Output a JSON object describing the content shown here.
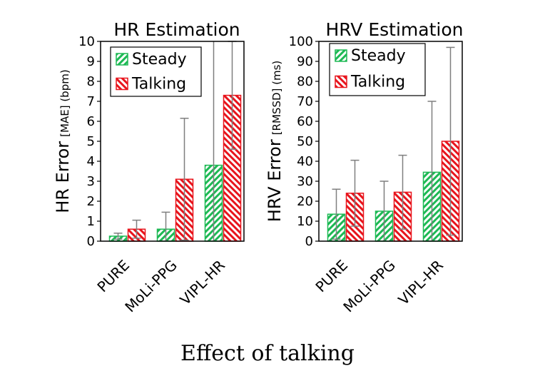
{
  "caption": "Effect of talking",
  "chart_data": [
    {
      "type": "bar",
      "title": "HR Estimation",
      "ylabel_main": "HR Error",
      "ylabel_unit": "[MAE] (bpm)",
      "categories": [
        "PURE",
        "MoLi-PPG",
        "VIPL-HR"
      ],
      "ylim": [
        0,
        10
      ],
      "yticks": [
        0,
        1,
        2,
        3,
        4,
        5,
        6,
        7,
        8,
        9,
        10
      ],
      "legend_position": "top-left",
      "series": [
        {
          "name": "Steady",
          "color": "#1db954",
          "values": [
            0.25,
            0.6,
            3.8
          ],
          "error": [
            0.15,
            0.85,
            6.5
          ]
        },
        {
          "name": "Talking",
          "color": "#e8141c",
          "values": [
            0.6,
            3.1,
            7.3
          ],
          "error": [
            0.45,
            3.05,
            2.7
          ]
        }
      ]
    },
    {
      "type": "bar",
      "title": "HRV Estimation",
      "ylabel_main": "HRV Error",
      "ylabel_unit": "[RMSSD] (ms)",
      "categories": [
        "PURE",
        "MoLi-PPG",
        "VIPL-HR"
      ],
      "ylim": [
        0,
        100
      ],
      "yticks": [
        0,
        10,
        20,
        30,
        40,
        50,
        60,
        70,
        80,
        90,
        100
      ],
      "legend_position": "top-left",
      "series": [
        {
          "name": "Steady",
          "color": "#1db954",
          "values": [
            13.5,
            15,
            34.5
          ],
          "error": [
            12.5,
            15,
            35.5
          ]
        },
        {
          "name": "Talking",
          "color": "#e8141c",
          "values": [
            24,
            24.5,
            50
          ],
          "error": [
            16.5,
            18.5,
            47
          ]
        }
      ]
    }
  ]
}
